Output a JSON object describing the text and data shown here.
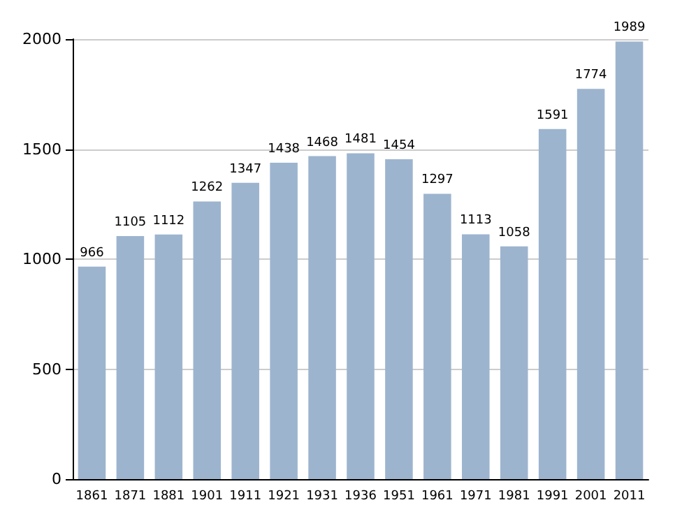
{
  "chart_data": {
    "type": "bar",
    "categories": [
      "1861",
      "1871",
      "1881",
      "1901",
      "1911",
      "1921",
      "1931",
      "1936",
      "1951",
      "1961",
      "1971",
      "1981",
      "1991",
      "2001",
      "2011"
    ],
    "values": [
      966,
      1105,
      1112,
      1262,
      1347,
      1438,
      1468,
      1481,
      1454,
      1297,
      1113,
      1058,
      1591,
      1774,
      1989
    ],
    "color": "#9db4cf",
    "ylim": [
      0,
      2000
    ],
    "yticks": [
      0,
      500,
      1000,
      1500,
      2000
    ],
    "grid": "y",
    "data_labels": true
  }
}
